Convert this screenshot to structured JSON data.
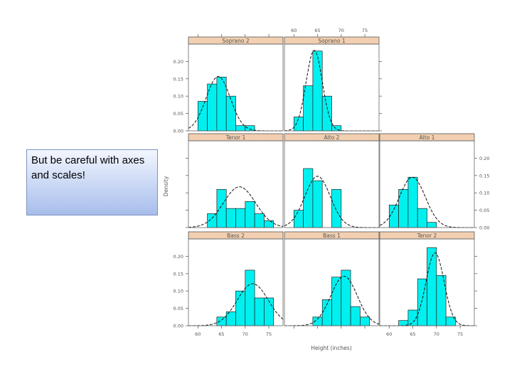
{
  "callout": {
    "text": "But be careful with axes and scales!"
  },
  "chart_data": {
    "type": "bar",
    "title": "",
    "xlabel": "Height (inches)",
    "ylabel": "Density",
    "xlim": [
      58,
      78
    ],
    "ylim": [
      0,
      0.25
    ],
    "x_ticks": [
      60,
      65,
      70,
      75
    ],
    "y_ticks": [
      0.0,
      0.05,
      0.1,
      0.15,
      0.2
    ],
    "y_tick_labels": [
      "0.00",
      "0.05",
      "0.10",
      "0.15",
      "0.20"
    ],
    "grid": false,
    "legend": "none",
    "bar_color": "#00f0f0",
    "curve_style": "dashed normal density",
    "panels": [
      {
        "name": "Soprano 2",
        "bin_edges": [
          60,
          62,
          64,
          66,
          68,
          70,
          72
        ],
        "values": [
          0.085,
          0.135,
          0.155,
          0.1,
          0.015,
          0.015
        ],
        "normal_mean": 64.3,
        "normal_sd": 2.55
      },
      {
        "name": "Soprano 1",
        "bin_edges": [
          60,
          62,
          64,
          66,
          68,
          70,
          72
        ],
        "values": [
          0.04,
          0.13,
          0.23,
          0.1,
          0.015,
          0.0
        ],
        "normal_mean": 64.3,
        "normal_sd": 1.72
      },
      {
        "name": "Tenor 1",
        "bin_edges": [
          62,
          64,
          66,
          68,
          70,
          72,
          74,
          76
        ],
        "values": [
          0.04,
          0.11,
          0.055,
          0.055,
          0.075,
          0.04,
          0.02
        ],
        "normal_mean": 68.8,
        "normal_sd": 3.4
      },
      {
        "name": "Alto 2",
        "bin_edges": [
          60,
          62,
          64,
          66,
          68,
          70,
          72
        ],
        "values": [
          0.05,
          0.17,
          0.135,
          0.0,
          0.11,
          0.0
        ],
        "normal_mean": 65.0,
        "normal_sd": 2.7
      },
      {
        "name": "Alto 1",
        "bin_edges": [
          60,
          62,
          64,
          66,
          68,
          70,
          72
        ],
        "values": [
          0.065,
          0.11,
          0.145,
          0.055,
          0.015,
          0.0
        ],
        "normal_mean": 64.9,
        "normal_sd": 2.75
      },
      {
        "name": "Bass 2",
        "bin_edges": [
          64,
          66,
          68,
          70,
          72,
          74,
          76
        ],
        "values": [
          0.025,
          0.04,
          0.1,
          0.16,
          0.08,
          0.08
        ],
        "normal_mean": 71.6,
        "normal_sd": 3.3
      },
      {
        "name": "Bass 1",
        "bin_edges": [
          64,
          66,
          68,
          70,
          72,
          74,
          76
        ],
        "values": [
          0.025,
          0.075,
          0.14,
          0.16,
          0.055,
          0.025
        ],
        "normal_mean": 70.6,
        "normal_sd": 2.8
      },
      {
        "name": "Tenor 2",
        "bin_edges": [
          62,
          64,
          66,
          68,
          70,
          72,
          74,
          76
        ],
        "values": [
          0.015,
          0.045,
          0.135,
          0.225,
          0.145,
          0.025,
          0.0
        ],
        "normal_mean": 69.7,
        "normal_sd": 1.9
      }
    ]
  }
}
